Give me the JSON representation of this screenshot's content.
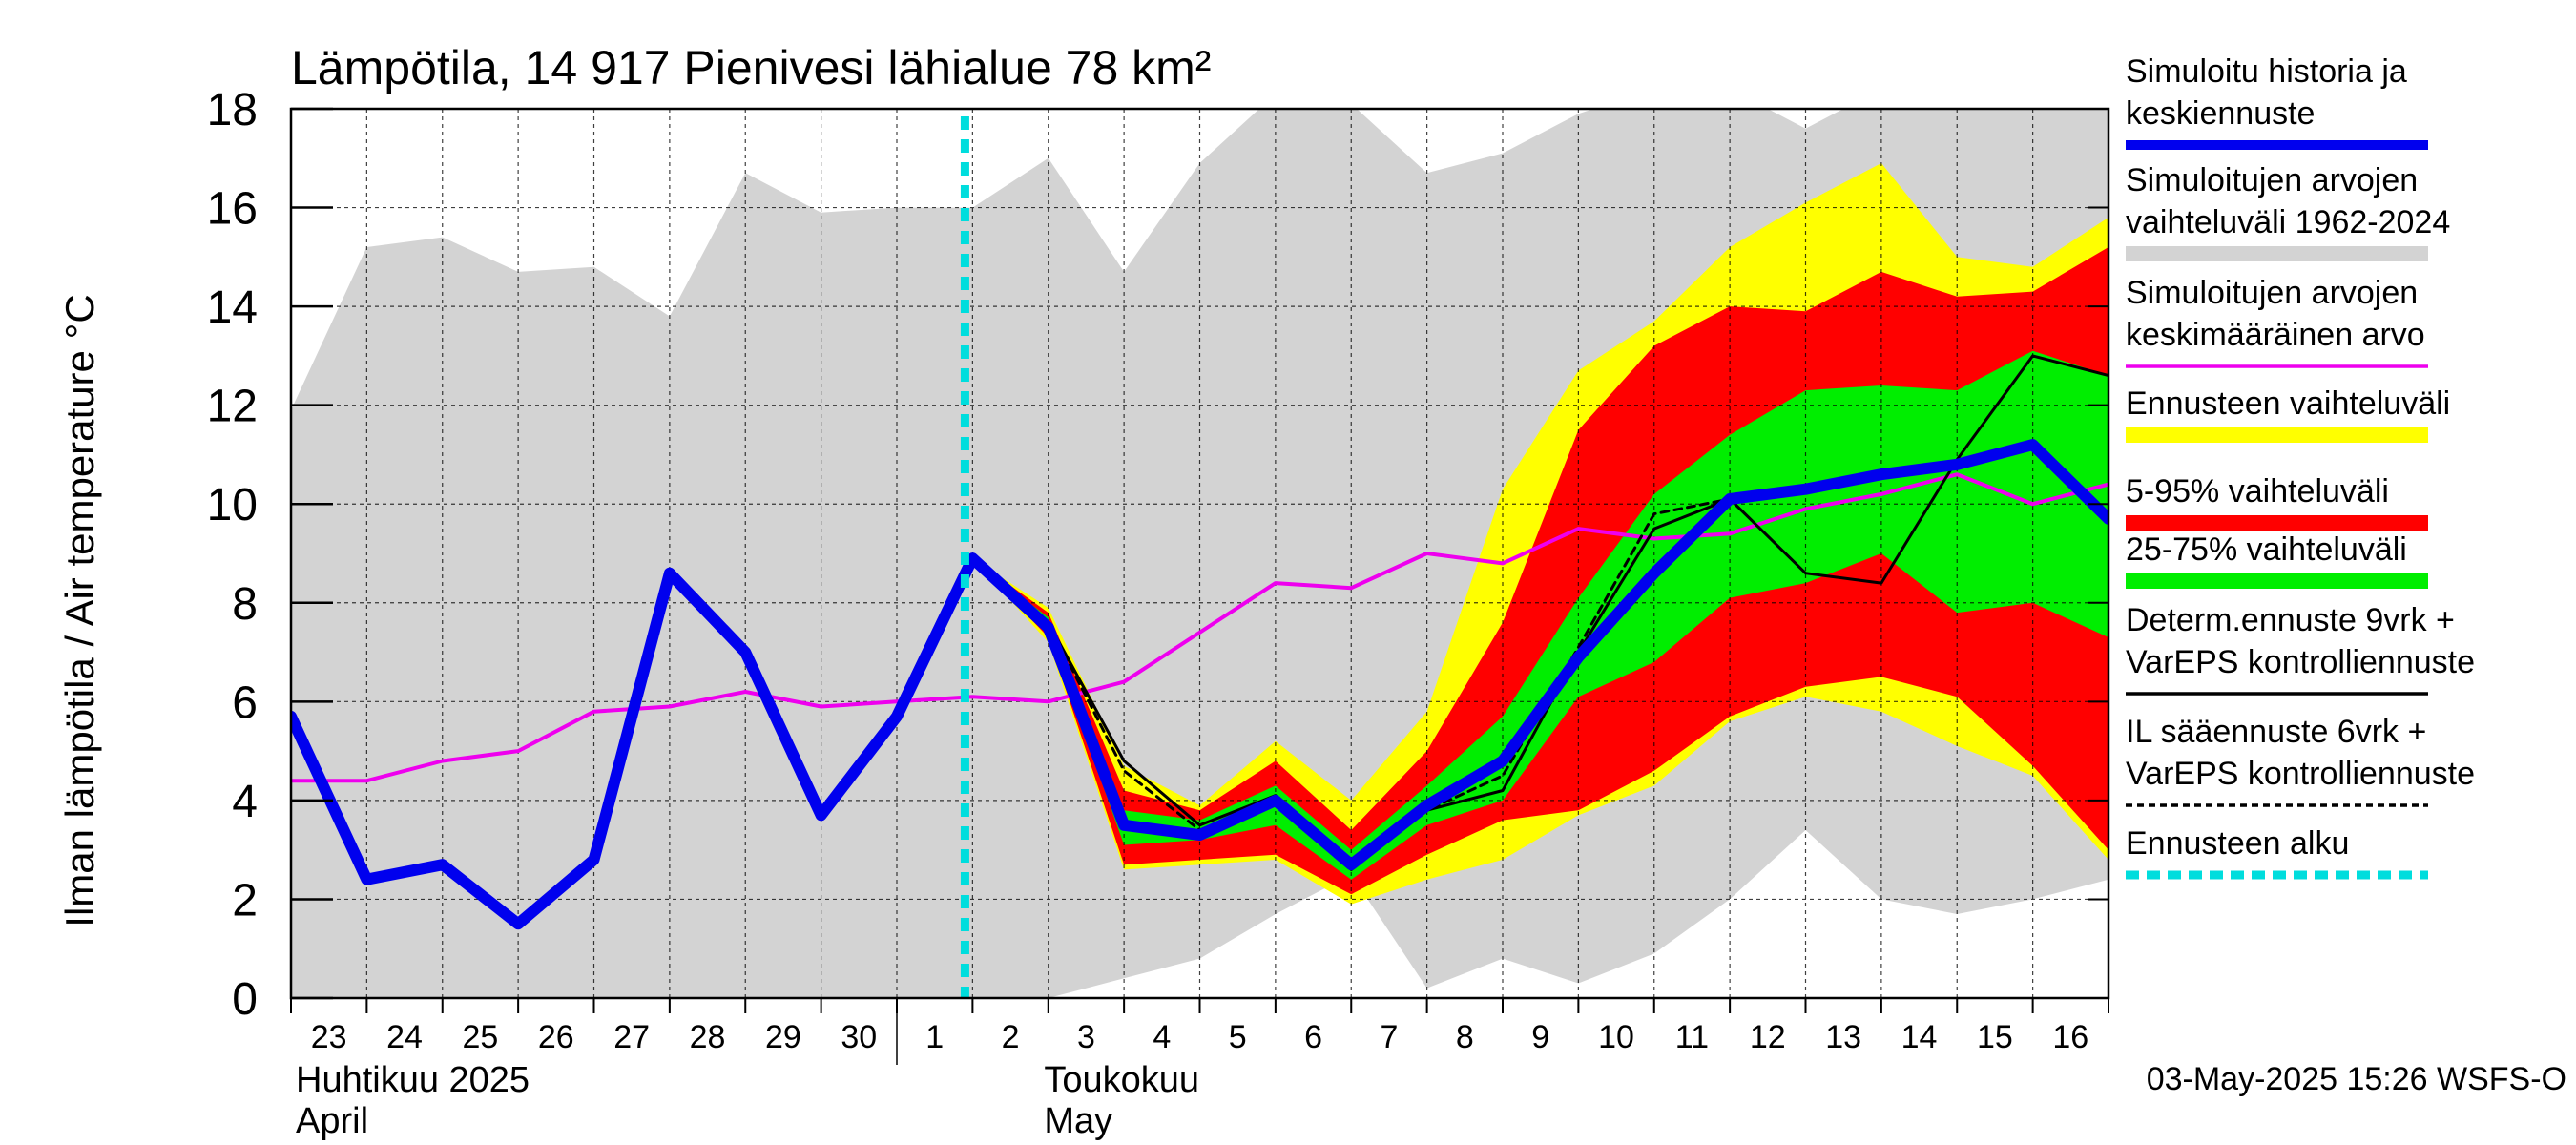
{
  "chart_data": {
    "type": "line",
    "title": "Lämpötila, 14 917 Pienivesi lähialue 78 km²",
    "ylabel": "Ilman lämpötila / Air temperature   °C",
    "ylim": [
      0,
      18
    ],
    "y_ticks": [
      0,
      2,
      4,
      6,
      8,
      10,
      12,
      14,
      16,
      18
    ],
    "x_start": "2025-04-23",
    "x_end": "2025-05-17",
    "day_labels": [
      "23",
      "24",
      "25",
      "26",
      "27",
      "28",
      "29",
      "30",
      "1",
      "2",
      "3",
      "4",
      "5",
      "6",
      "7",
      "8",
      "9",
      "10",
      "11",
      "12",
      "13",
      "14",
      "15",
      "16"
    ],
    "month_labels": [
      {
        "line1": "Huhtikuu  2025",
        "line2": "April",
        "at": 0
      },
      {
        "line1": "Toukokuu",
        "line2": "May",
        "at": 9
      }
    ],
    "forecast_start": 8.9,
    "grid": true,
    "timestamp": "03-May-2025 15:26 WSFS-O",
    "colors": {
      "history_band": "#d3d3d3",
      "ensemble_range": "#ffff00",
      "p5_95": "#ff0000",
      "p25_75": "#00ee00",
      "simulated": "#0000ee",
      "mean": "#ee00ee",
      "deterministic": "#000000",
      "forecast_start": "#00dddd"
    },
    "series": {
      "history_band": {
        "upper": [
          [
            0,
            11.9
          ],
          [
            1,
            15.2
          ],
          [
            2,
            15.4
          ],
          [
            3,
            14.7
          ],
          [
            4,
            14.8
          ],
          [
            5,
            13.8
          ],
          [
            6,
            16.7
          ],
          [
            7,
            15.9
          ],
          [
            8,
            16.0
          ],
          [
            9,
            16.0
          ],
          [
            10,
            17.0
          ],
          [
            11,
            14.7
          ],
          [
            12,
            16.9
          ],
          [
            13,
            18.3
          ],
          [
            14,
            18.1
          ],
          [
            15,
            16.7
          ],
          [
            16,
            17.1
          ],
          [
            17,
            17.9
          ],
          [
            18,
            18.4
          ],
          [
            19,
            18.4
          ],
          [
            20,
            17.6
          ],
          [
            21,
            18.4
          ],
          [
            22,
            18.4
          ],
          [
            23,
            18.4
          ],
          [
            24,
            18.4
          ]
        ],
        "lower": [
          [
            0,
            0
          ],
          [
            8,
            0
          ],
          [
            9,
            0
          ],
          [
            10,
            0
          ],
          [
            11,
            0.4
          ],
          [
            12,
            0.8
          ],
          [
            13,
            1.7
          ],
          [
            14,
            2.5
          ],
          [
            15,
            0.2
          ],
          [
            16,
            0.8
          ],
          [
            17,
            0.3
          ],
          [
            18,
            0.9
          ],
          [
            19,
            2.0
          ],
          [
            20,
            3.4
          ],
          [
            21,
            2.0
          ],
          [
            22,
            1.7
          ],
          [
            23,
            2.0
          ],
          [
            24,
            2.4
          ]
        ]
      },
      "ensemble_range": {
        "upper": [
          [
            9,
            8.9
          ],
          [
            10,
            7.9
          ],
          [
            11,
            4.7
          ],
          [
            12,
            3.9
          ],
          [
            13,
            5.2
          ],
          [
            14,
            4.0
          ],
          [
            15,
            5.8
          ],
          [
            16,
            10.3
          ],
          [
            17,
            12.7
          ],
          [
            18,
            13.7
          ],
          [
            19,
            15.2
          ],
          [
            20,
            16.1
          ],
          [
            21,
            16.9
          ],
          [
            22,
            15.0
          ],
          [
            23,
            14.8
          ],
          [
            24,
            15.8
          ]
        ],
        "lower": [
          [
            9,
            8.9
          ],
          [
            10,
            7.2
          ],
          [
            11,
            2.6
          ],
          [
            12,
            2.7
          ],
          [
            13,
            2.8
          ],
          [
            14,
            1.9
          ],
          [
            15,
            2.4
          ],
          [
            16,
            2.8
          ],
          [
            17,
            3.7
          ],
          [
            18,
            4.3
          ],
          [
            19,
            5.6
          ],
          [
            20,
            6.1
          ],
          [
            21,
            5.8
          ],
          [
            22,
            5.1
          ],
          [
            23,
            4.5
          ],
          [
            24,
            2.8
          ]
        ]
      },
      "p5_95": {
        "upper": [
          [
            9,
            8.9
          ],
          [
            10,
            7.8
          ],
          [
            11,
            4.2
          ],
          [
            12,
            3.8
          ],
          [
            13,
            4.8
          ],
          [
            14,
            3.4
          ],
          [
            15,
            5.0
          ],
          [
            16,
            7.6
          ],
          [
            17,
            11.5
          ],
          [
            18,
            13.2
          ],
          [
            19,
            14.0
          ],
          [
            20,
            13.9
          ],
          [
            21,
            14.7
          ],
          [
            22,
            14.2
          ],
          [
            23,
            14.3
          ],
          [
            24,
            15.2
          ]
        ],
        "lower": [
          [
            9,
            8.9
          ],
          [
            10,
            7.3
          ],
          [
            11,
            2.7
          ],
          [
            12,
            2.8
          ],
          [
            13,
            2.9
          ],
          [
            14,
            2.1
          ],
          [
            15,
            2.9
          ],
          [
            16,
            3.6
          ],
          [
            17,
            3.8
          ],
          [
            18,
            4.6
          ],
          [
            19,
            5.7
          ],
          [
            20,
            6.3
          ],
          [
            21,
            6.5
          ],
          [
            22,
            6.1
          ],
          [
            23,
            4.7
          ],
          [
            24,
            3.0
          ]
        ]
      },
      "p25_75": {
        "upper": [
          [
            9,
            8.9
          ],
          [
            10,
            7.7
          ],
          [
            11,
            3.8
          ],
          [
            12,
            3.6
          ],
          [
            13,
            4.3
          ],
          [
            14,
            3.0
          ],
          [
            15,
            4.3
          ],
          [
            16,
            5.7
          ],
          [
            17,
            8.1
          ],
          [
            18,
            10.2
          ],
          [
            19,
            11.4
          ],
          [
            20,
            12.3
          ],
          [
            21,
            12.4
          ],
          [
            22,
            12.3
          ],
          [
            23,
            13.1
          ],
          [
            24,
            12.6
          ]
        ],
        "lower": [
          [
            9,
            8.9
          ],
          [
            10,
            7.4
          ],
          [
            11,
            3.1
          ],
          [
            12,
            3.2
          ],
          [
            13,
            3.5
          ],
          [
            14,
            2.4
          ],
          [
            15,
            3.5
          ],
          [
            16,
            4.0
          ],
          [
            17,
            6.1
          ],
          [
            18,
            6.8
          ],
          [
            19,
            8.1
          ],
          [
            20,
            8.4
          ],
          [
            21,
            9.0
          ],
          [
            22,
            7.8
          ],
          [
            23,
            8.0
          ],
          [
            24,
            7.3
          ]
        ]
      },
      "simulated": [
        [
          0,
          5.7
        ],
        [
          1,
          2.4
        ],
        [
          2,
          2.7
        ],
        [
          3,
          1.5
        ],
        [
          4,
          2.8
        ],
        [
          5,
          8.6
        ],
        [
          6,
          7.0
        ],
        [
          7,
          3.7
        ],
        [
          8,
          5.7
        ],
        [
          9,
          8.9
        ],
        [
          10,
          7.5
        ],
        [
          11,
          3.5
        ],
        [
          12,
          3.3
        ],
        [
          13,
          4.0
        ],
        [
          14,
          2.7
        ],
        [
          15,
          3.9
        ],
        [
          16,
          4.8
        ],
        [
          17,
          6.9
        ],
        [
          18,
          8.6
        ],
        [
          19,
          10.1
        ],
        [
          20,
          10.3
        ],
        [
          21,
          10.6
        ],
        [
          22,
          10.8
        ],
        [
          23,
          11.2
        ],
        [
          24,
          9.7
        ]
      ],
      "mean": [
        [
          0,
          4.4
        ],
        [
          1,
          4.4
        ],
        [
          2,
          4.8
        ],
        [
          3,
          5.0
        ],
        [
          4,
          5.8
        ],
        [
          5,
          5.9
        ],
        [
          6,
          6.2
        ],
        [
          7,
          5.9
        ],
        [
          8,
          6.0
        ],
        [
          9,
          6.1
        ],
        [
          10,
          6.0
        ],
        [
          11,
          6.4
        ],
        [
          12,
          7.4
        ],
        [
          13,
          8.4
        ],
        [
          14,
          8.3
        ],
        [
          15,
          9.0
        ],
        [
          16,
          8.8
        ],
        [
          17,
          9.5
        ],
        [
          18,
          9.3
        ],
        [
          19,
          9.4
        ],
        [
          20,
          9.9
        ],
        [
          21,
          10.2
        ],
        [
          22,
          10.6
        ],
        [
          23,
          10.0
        ],
        [
          24,
          10.4
        ]
      ],
      "deterministic": [
        [
          9,
          8.9
        ],
        [
          10,
          7.6
        ],
        [
          11,
          4.8
        ],
        [
          12,
          3.5
        ],
        [
          13,
          4.1
        ],
        [
          14,
          2.6
        ],
        [
          15,
          3.8
        ],
        [
          16,
          4.2
        ],
        [
          17,
          7.0
        ],
        [
          18,
          9.5
        ],
        [
          19,
          10.1
        ],
        [
          20,
          8.6
        ],
        [
          21,
          8.4
        ],
        [
          22,
          10.9
        ],
        [
          23,
          13.0
        ],
        [
          24,
          12.6
        ]
      ],
      "il_forecast": [
        [
          9,
          8.9
        ],
        [
          10,
          7.6
        ],
        [
          11,
          4.6
        ],
        [
          12,
          3.4
        ],
        [
          13,
          4.0
        ],
        [
          14,
          2.7
        ],
        [
          15,
          3.8
        ],
        [
          16,
          4.5
        ],
        [
          17,
          7.1
        ],
        [
          18,
          9.8
        ],
        [
          19,
          10.1
        ]
      ]
    }
  },
  "legend": [
    {
      "lines": [
        "Simuloitu historia ja",
        "keskiennuste"
      ],
      "style": "thick",
      "color": "#0000ee"
    },
    {
      "lines": [
        "Simuloitujen arvojen",
        "vaihteluväli 1962-2024"
      ],
      "style": "band",
      "color": "#d3d3d3"
    },
    {
      "lines": [
        "Simuloitujen arvojen",
        "keskimääräinen arvo"
      ],
      "style": "thin",
      "color": "#ee00ee"
    },
    {
      "lines": [
        "Ennusteen vaihteluväli"
      ],
      "style": "band",
      "color": "#ffff00"
    },
    {
      "lines": [
        "5-95% vaihteluväli"
      ],
      "style": "band",
      "color": "#ff0000"
    },
    {
      "lines": [
        "25-75% vaihteluväli"
      ],
      "style": "band",
      "color": "#00ee00"
    },
    {
      "lines": [
        "Determ.ennuste 9vrk +",
        "VarEPS kontrolliennuste"
      ],
      "style": "thin",
      "color": "#000000"
    },
    {
      "lines": [
        "IL sääennuste 6vrk  +",
        "  VarEPS kontrolliennuste"
      ],
      "style": "dashed",
      "color": "#000000"
    },
    {
      "lines": [
        "Ennusteen alku"
      ],
      "style": "cyan-dashed",
      "color": "#00dddd"
    }
  ]
}
